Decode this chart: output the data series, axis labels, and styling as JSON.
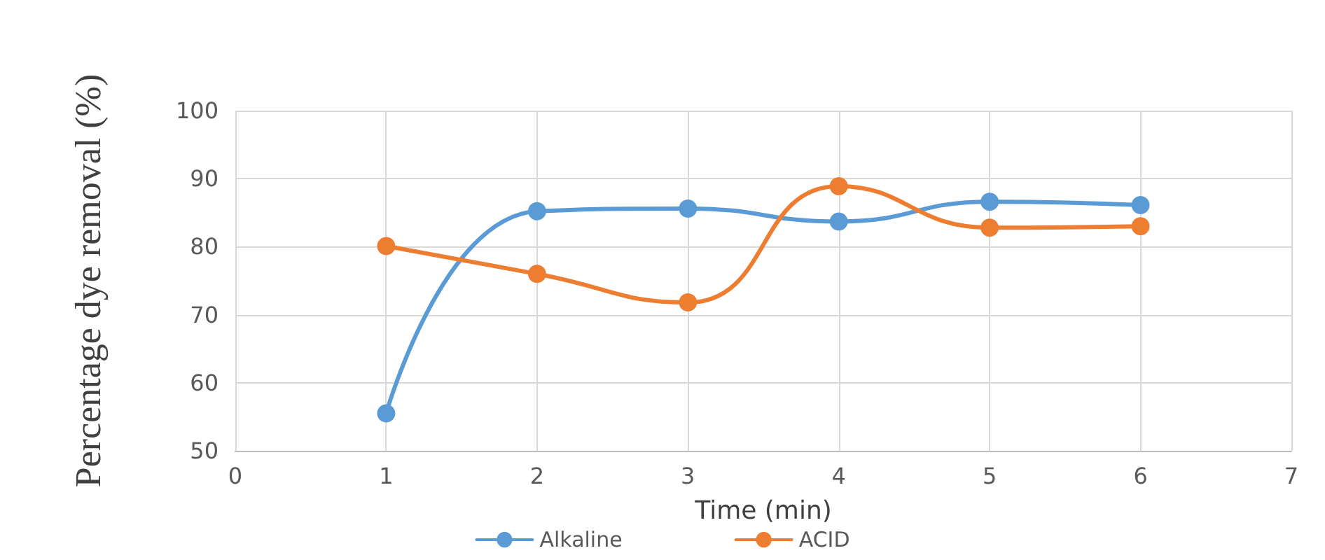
{
  "chart_data": {
    "type": "line",
    "xlabel": "Time (min)",
    "ylabel": "Percentage dye removal (%)",
    "x": [
      1,
      2,
      3,
      4,
      5,
      6
    ],
    "series": [
      {
        "name": "Alkaline",
        "color": "#5b9bd5",
        "values": [
          55.5,
          85.2,
          85.6,
          83.7,
          86.6,
          86.1
        ]
      },
      {
        "name": "ACID",
        "color": "#ed7d31",
        "values": [
          80.1,
          76,
          71.8,
          88.9,
          82.8,
          83
        ]
      }
    ],
    "xlim": [
      0,
      7
    ],
    "xticks": [
      0,
      1,
      2,
      3,
      4,
      5,
      6,
      7
    ],
    "ylim": [
      50,
      100
    ],
    "yticks": [
      50,
      60,
      70,
      80,
      90,
      100
    ],
    "grid": true,
    "legend": "bottom",
    "marker": "circle",
    "line_style": "solid"
  }
}
